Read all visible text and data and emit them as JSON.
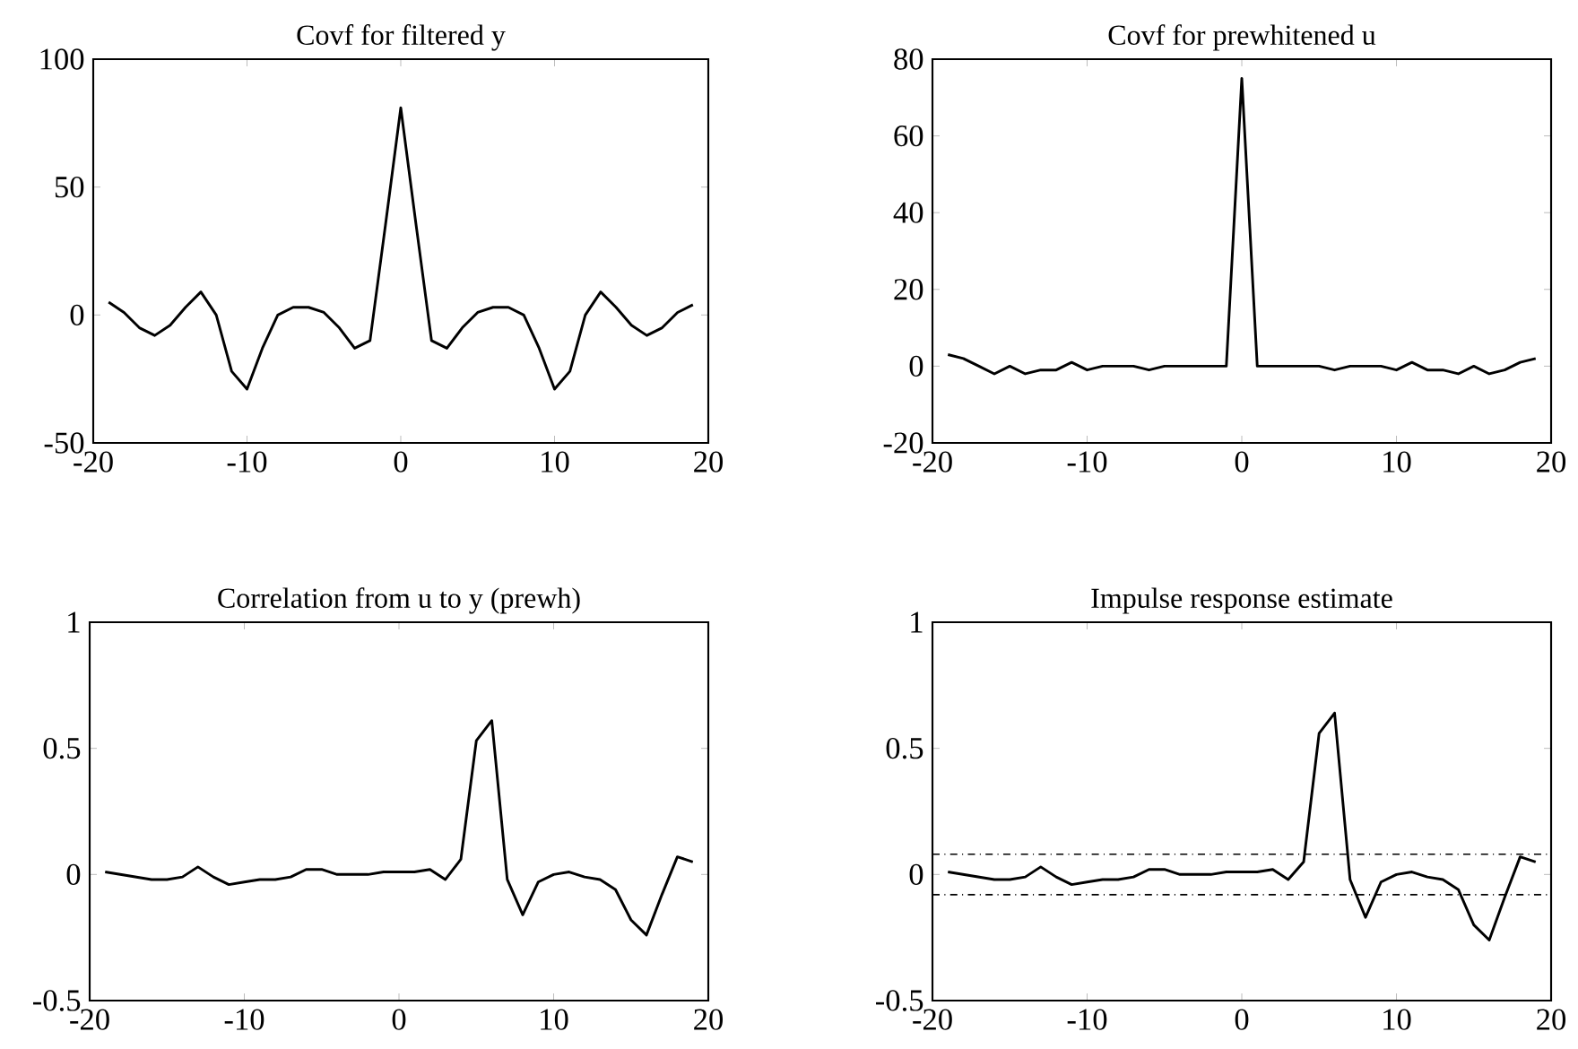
{
  "chart_data": [
    {
      "type": "line",
      "title": "Covf for filtered y",
      "x": [
        -19,
        -18,
        -17,
        -16,
        -15,
        -14,
        -13,
        -12,
        -11,
        -10,
        -9,
        -8,
        -7,
        -6,
        -5,
        -4,
        -3,
        -2,
        -1,
        0,
        1,
        2,
        3,
        4,
        5,
        6,
        7,
        8,
        9,
        10,
        11,
        12,
        13,
        14,
        15,
        16,
        17,
        18,
        19
      ],
      "series": [
        {
          "color": "#000000",
          "values": [
            5,
            1,
            -5,
            -8,
            -4,
            3,
            9,
            0,
            -22,
            -29,
            -13,
            0,
            3,
            3,
            1,
            -5,
            -13,
            -10,
            35,
            81,
            35,
            -10,
            -13,
            -5,
            1,
            3,
            3,
            0,
            -13,
            -29,
            -22,
            0,
            9,
            3,
            -4,
            -8,
            -5,
            1,
            4
          ]
        }
      ],
      "xlim": [
        -20,
        20
      ],
      "ylim": [
        -50,
        100
      ],
      "xticks": [
        -20,
        -10,
        0,
        10,
        20
      ],
      "yticks": [
        -50,
        0,
        50,
        100
      ]
    },
    {
      "type": "line",
      "title": "Covf for prewhitened u",
      "x": [
        -19,
        -18,
        -17,
        -16,
        -15,
        -14,
        -13,
        -12,
        -11,
        -10,
        -9,
        -8,
        -7,
        -6,
        -5,
        -4,
        -3,
        -2,
        -1,
        0,
        1,
        2,
        3,
        4,
        5,
        6,
        7,
        8,
        9,
        10,
        11,
        12,
        13,
        14,
        15,
        16,
        17,
        18,
        19
      ],
      "series": [
        {
          "color": "#000000",
          "values": [
            3,
            2,
            0,
            -2,
            0,
            -2,
            -1,
            -1,
            1,
            -1,
            0,
            0,
            0,
            -1,
            0,
            0,
            0,
            0,
            0,
            75,
            0,
            0,
            0,
            0,
            0,
            -1,
            0,
            0,
            0,
            -1,
            1,
            -1,
            -1,
            -2,
            0,
            -2,
            -1,
            1,
            2
          ]
        }
      ],
      "xlim": [
        -20,
        20
      ],
      "ylim": [
        -20,
        80
      ],
      "xticks": [
        -20,
        -10,
        0,
        10,
        20
      ],
      "yticks": [
        -20,
        0,
        20,
        40,
        60,
        80
      ]
    },
    {
      "type": "line",
      "title": "Correlation from u to y (prewh)",
      "x": [
        -19,
        -18,
        -17,
        -16,
        -15,
        -14,
        -13,
        -12,
        -11,
        -10,
        -9,
        -8,
        -7,
        -6,
        -5,
        -4,
        -3,
        -2,
        -1,
        0,
        1,
        2,
        3,
        4,
        5,
        6,
        7,
        8,
        9,
        10,
        11,
        12,
        13,
        14,
        15,
        16,
        17,
        18,
        19
      ],
      "series": [
        {
          "color": "#000000",
          "values": [
            0.01,
            0.0,
            -0.01,
            -0.02,
            -0.02,
            -0.01,
            0.03,
            -0.01,
            -0.04,
            -0.03,
            -0.02,
            -0.02,
            -0.01,
            0.02,
            0.02,
            0.0,
            0.0,
            0.0,
            0.01,
            0.01,
            0.01,
            0.02,
            -0.02,
            0.06,
            0.53,
            0.61,
            -0.02,
            -0.16,
            -0.03,
            0.0,
            0.01,
            -0.01,
            -0.02,
            -0.06,
            -0.18,
            -0.24,
            -0.08,
            0.07,
            0.05
          ]
        }
      ],
      "xlim": [
        -20,
        20
      ],
      "ylim": [
        -0.5,
        1
      ],
      "xticks": [
        -20,
        -10,
        0,
        10,
        20
      ],
      "yticks": [
        -0.5,
        0,
        0.5,
        1
      ]
    },
    {
      "type": "line",
      "title": "Impulse response estimate",
      "x": [
        -19,
        -18,
        -17,
        -16,
        -15,
        -14,
        -13,
        -12,
        -11,
        -10,
        -9,
        -8,
        -7,
        -6,
        -5,
        -4,
        -3,
        -2,
        -1,
        0,
        1,
        2,
        3,
        4,
        5,
        6,
        7,
        8,
        9,
        10,
        11,
        12,
        13,
        14,
        15,
        16,
        17,
        18,
        19
      ],
      "series": [
        {
          "color": "#000000",
          "values": [
            0.01,
            0.0,
            -0.01,
            -0.02,
            -0.02,
            -0.01,
            0.03,
            -0.01,
            -0.04,
            -0.03,
            -0.02,
            -0.02,
            -0.01,
            0.02,
            0.02,
            0.0,
            0.0,
            0.0,
            0.01,
            0.01,
            0.01,
            0.02,
            -0.02,
            0.05,
            0.56,
            0.64,
            -0.02,
            -0.17,
            -0.03,
            0.0,
            0.01,
            -0.01,
            -0.02,
            -0.06,
            -0.2,
            -0.26,
            -0.09,
            0.07,
            0.05
          ]
        }
      ],
      "ref_lines": [
        {
          "axis": "y",
          "value": 0.08,
          "color": "#000000",
          "line_style": "dashed"
        },
        {
          "axis": "y",
          "value": -0.08,
          "color": "#000000",
          "line_style": "dashed"
        }
      ],
      "xlim": [
        -20,
        20
      ],
      "ylim": [
        -0.5,
        1
      ],
      "xticks": [
        -20,
        -10,
        0,
        10,
        20
      ],
      "yticks": [
        -0.5,
        0,
        0.5,
        1
      ]
    }
  ]
}
